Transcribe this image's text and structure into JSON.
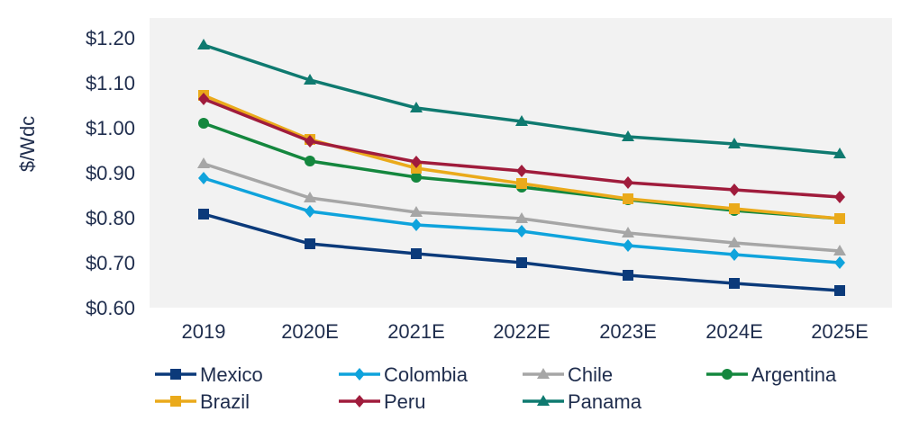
{
  "chart_data": {
    "type": "line",
    "title": "",
    "xlabel": "",
    "ylabel": "$/Wdc",
    "ylim": [
      0.6,
      1.2
    ],
    "yticks": [
      0.6,
      0.7,
      0.8,
      0.9,
      1.0,
      1.1,
      1.2
    ],
    "ytick_labels": [
      "$0.60",
      "$0.70",
      "$0.80",
      "$0.90",
      "$1.00",
      "$1.10",
      "$1.20"
    ],
    "categories": [
      "2019",
      "2020E",
      "2021E",
      "2022E",
      "2023E",
      "2024E",
      "2025E"
    ],
    "grid": false,
    "plot_background": "#f2f2f2",
    "legend": "bottom",
    "series": [
      {
        "name": "Mexico",
        "color": "#0b3a7a",
        "marker": "square",
        "values": [
          0.808,
          0.742,
          0.72,
          0.7,
          0.672,
          0.654,
          0.638
        ]
      },
      {
        "name": "Colombia",
        "color": "#0fa3dc",
        "marker": "diamond",
        "values": [
          0.888,
          0.814,
          0.784,
          0.77,
          0.738,
          0.718,
          0.7
        ]
      },
      {
        "name": "Chile",
        "color": "#a6a6a6",
        "marker": "triangle",
        "values": [
          0.92,
          0.844,
          0.812,
          0.798,
          0.766,
          0.744,
          0.726
        ]
      },
      {
        "name": "Argentina",
        "color": "#14873e",
        "marker": "circle",
        "values": [
          1.01,
          0.926,
          0.89,
          0.868,
          0.84,
          0.816,
          0.798
        ]
      },
      {
        "name": "Brazil",
        "color": "#eaaa1b",
        "marker": "square",
        "values": [
          1.072,
          0.974,
          0.91,
          0.876,
          0.842,
          0.82,
          0.798
        ]
      },
      {
        "name": "Peru",
        "color": "#a01c3c",
        "marker": "diamond",
        "values": [
          1.064,
          0.97,
          0.924,
          0.904,
          0.878,
          0.862,
          0.846
        ]
      },
      {
        "name": "Panama",
        "color": "#0f7a70",
        "marker": "triangle",
        "values": [
          1.184,
          1.106,
          1.044,
          1.014,
          0.98,
          0.964,
          0.942
        ]
      }
    ]
  }
}
